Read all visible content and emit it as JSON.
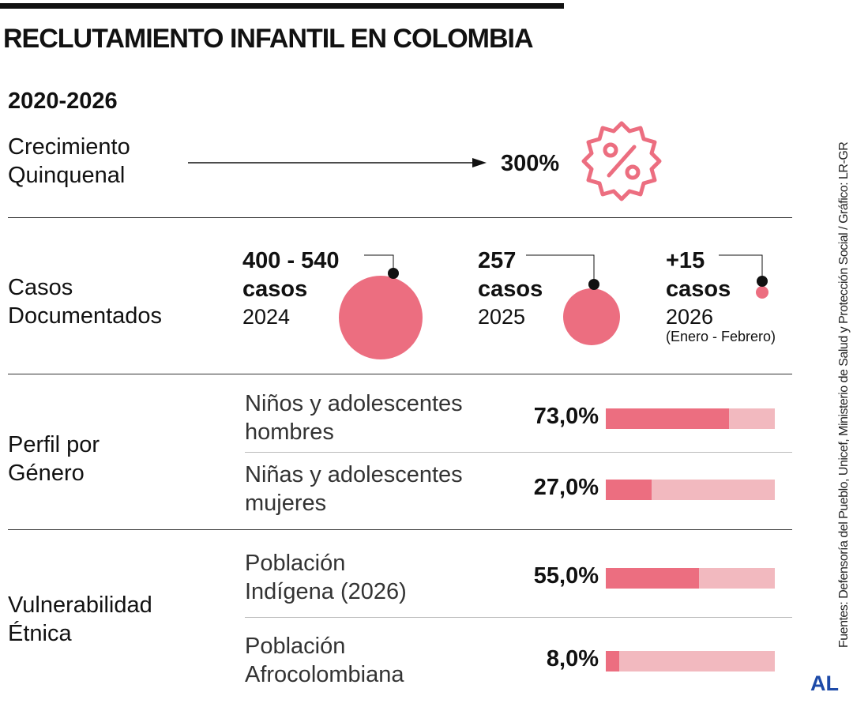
{
  "title": "RECLUTAMIENTO INFANTIL EN COLOMBIA",
  "period": "2020-2026",
  "growth": {
    "label_line1": "Crecimiento",
    "label_line2": "Quinquenal",
    "value": "300%",
    "icon": "percent-badge-icon"
  },
  "cases": {
    "label_line1": "Casos",
    "label_line2": "Documentados",
    "items": [
      {
        "value": "400 - 540",
        "unit": "casos",
        "year": "2024",
        "note": ""
      },
      {
        "value": "257",
        "unit": "casos",
        "year": "2025",
        "note": ""
      },
      {
        "value": "+15",
        "unit": "casos",
        "year": "2026",
        "note": "(Enero - Febrero)"
      }
    ]
  },
  "gender": {
    "label_line1": "Perfil por",
    "label_line2": "Género",
    "items": [
      {
        "line1": "Niños y adolescentes",
        "line2": "hombres",
        "pct": "73,0%",
        "value": 73.0
      },
      {
        "line1": "Niñas y adolescentes",
        "line2": "mujeres",
        "pct": "27,0%",
        "value": 27.0
      }
    ]
  },
  "ethnic": {
    "label_line1": "Vulnerabilidad",
    "label_line2": "Étnica",
    "items": [
      {
        "line1": "Población",
        "line2": "Indígena (2026)",
        "pct": "55,0%",
        "value": 55.0
      },
      {
        "line1": "Población",
        "line2": "Afrocolombiana",
        "pct": "8,0%",
        "value": 8.0
      }
    ]
  },
  "source": "Fuentes: Defensoría del Pueblo, Unicef, Ministerio de Salud y Protección Social / Gráfico: LR-GR",
  "logo": "AL",
  "colors": {
    "accent": "#ec6e80",
    "track": "#f2b9bf"
  },
  "chart_data": {
    "type": "bar",
    "title": "Reclutamiento infantil en Colombia",
    "bubbles": {
      "categories": [
        "2024",
        "2025",
        "2026 (Enero - Febrero)"
      ],
      "labels": [
        "400 - 540",
        "257",
        "+15"
      ],
      "values": [
        540,
        257,
        15
      ]
    },
    "bars": {
      "categories": [
        "Niños y adolescentes hombres",
        "Niñas y adolescentes mujeres",
        "Población Indígena (2026)",
        "Población Afrocolombiana"
      ],
      "values": [
        73.0,
        27.0,
        55.0,
        8.0
      ],
      "ylim": [
        0,
        100
      ]
    }
  }
}
